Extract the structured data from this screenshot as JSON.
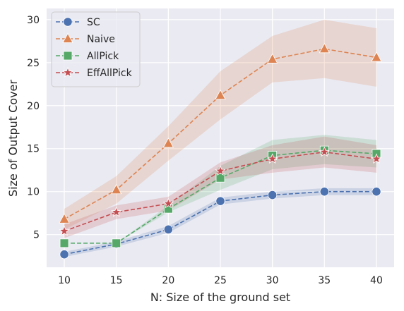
{
  "chart_data": {
    "type": "line",
    "xlabel": "N: Size of the ground set",
    "ylabel": "Size of Output Cover",
    "x": [
      10,
      15,
      20,
      25,
      30,
      35,
      40
    ],
    "xlim": [
      8.3,
      41.7
    ],
    "ylim": [
      1.2,
      31.3
    ],
    "xticks": [
      10,
      15,
      20,
      25,
      30,
      35,
      40
    ],
    "yticks": [
      5,
      10,
      15,
      20,
      25,
      30
    ],
    "grid": true,
    "legend_position": "top-left",
    "background": "#eaeaf2",
    "series": [
      {
        "name": "SC",
        "color": "#4c72b0",
        "marker": "circle",
        "values": [
          2.7,
          3.9,
          5.6,
          8.9,
          9.6,
          10.0,
          10.0
        ],
        "band_lower": [
          2.4,
          3.6,
          5.2,
          8.5,
          9.2,
          9.6,
          9.6
        ],
        "band_upper": [
          3.0,
          4.2,
          6.0,
          9.3,
          10.0,
          10.4,
          10.4
        ]
      },
      {
        "name": "Naive",
        "color": "#dd8452",
        "marker": "triangle",
        "values": [
          6.8,
          10.2,
          15.6,
          21.2,
          25.4,
          26.6,
          25.6
        ],
        "band_lower": [
          5.6,
          8.6,
          13.6,
          18.4,
          22.7,
          23.2,
          22.2
        ],
        "band_upper": [
          8.0,
          11.8,
          17.6,
          24.0,
          28.1,
          30.0,
          29.0
        ]
      },
      {
        "name": "AllPick",
        "color": "#55a868",
        "marker": "square",
        "values": [
          4.0,
          4.0,
          8.0,
          11.6,
          14.2,
          14.8,
          14.4
        ],
        "band_lower": [
          4.0,
          4.0,
          7.6,
          10.2,
          12.6,
          13.2,
          12.8
        ],
        "band_upper": [
          4.0,
          4.0,
          8.4,
          13.0,
          16.0,
          16.6,
          16.0
        ]
      },
      {
        "name": "EffAllPick",
        "color": "#c44e52",
        "marker": "star",
        "values": [
          5.4,
          7.6,
          8.6,
          12.4,
          13.8,
          14.6,
          13.8
        ],
        "band_lower": [
          4.6,
          6.8,
          7.8,
          11.4,
          12.2,
          12.8,
          12.2
        ],
        "band_upper": [
          6.2,
          8.4,
          9.4,
          13.4,
          15.4,
          16.4,
          15.4
        ]
      }
    ]
  }
}
